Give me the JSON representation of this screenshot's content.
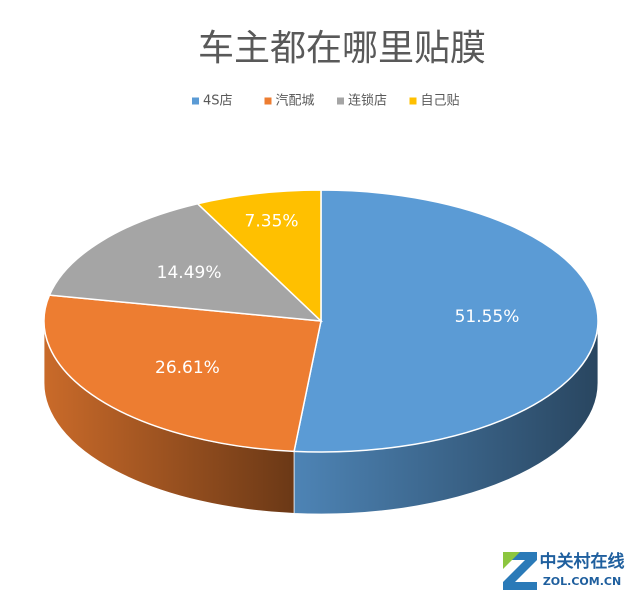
{
  "chart_data": {
    "type": "pie",
    "title": "车主都在哪里贴膜",
    "categories": [
      "4S店",
      "汽配城",
      "连锁店",
      "自己贴"
    ],
    "values": [
      51.55,
      26.61,
      14.49,
      7.35
    ],
    "value_labels": [
      "51.55%",
      "26.61%",
      "14.49%",
      "7.35%"
    ],
    "colors": [
      "#5b9bd5",
      "#ed7d31",
      "#a5a5a5",
      "#ffc000"
    ],
    "legend": "top",
    "style": "3d"
  },
  "watermark": {
    "name": "中关村在线",
    "site": "ZOL.COM.CN"
  }
}
